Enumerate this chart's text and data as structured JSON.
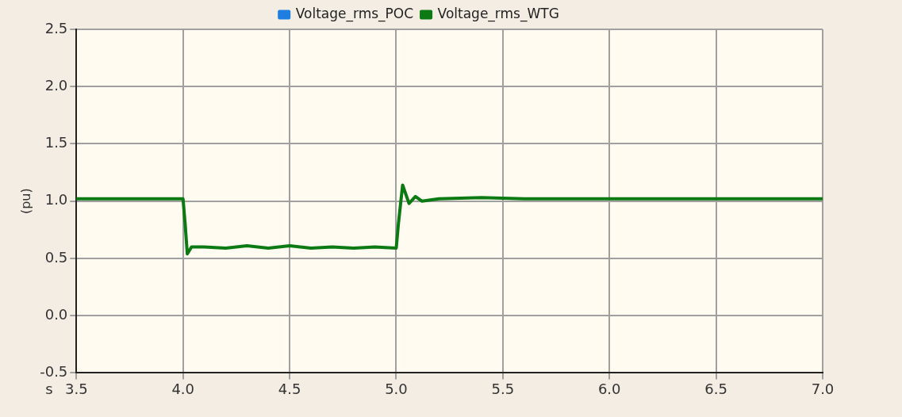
{
  "chart_data": {
    "type": "line",
    "ylabel": "(pu)",
    "xlabel": "s",
    "xlim": [
      3.5,
      7.0
    ],
    "xticks": [
      {
        "value": 3.5,
        "label": "3.5"
      },
      {
        "value": 4.0,
        "label": "4.0"
      },
      {
        "value": 4.5,
        "label": "4.5"
      },
      {
        "value": 5.0,
        "label": "5.0"
      },
      {
        "value": 5.5,
        "label": "5.5"
      },
      {
        "value": 6.0,
        "label": "6.0"
      },
      {
        "value": 6.5,
        "label": "6.5"
      },
      {
        "value": 7.0,
        "label": "7.0"
      }
    ],
    "ylim": [
      -0.5,
      2.5
    ],
    "yticks": [
      {
        "value": -0.5,
        "label": "-0.5"
      },
      {
        "value": 0,
        "label": "0.0"
      },
      {
        "value": 0.5,
        "label": "0.5"
      },
      {
        "value": 1.0,
        "label": "1.0"
      },
      {
        "value": 1.5,
        "label": "1.5"
      },
      {
        "value": 2.0,
        "label": "2.0"
      },
      {
        "value": 2.5,
        "label": "2.5"
      }
    ],
    "grid": true,
    "legend": "top",
    "marker": "none",
    "line_style": "solid",
    "x": [
      3.5,
      4.0,
      4.01,
      4.02,
      4.04,
      4.1,
      4.2,
      4.3,
      4.4,
      4.5,
      4.6,
      4.7,
      4.8,
      4.9,
      5.0,
      5.01,
      5.03,
      5.06,
      5.09,
      5.12,
      5.2,
      5.4,
      5.6,
      6.0,
      7.0
    ],
    "series": [
      {
        "name": "Voltage_rms_POC",
        "color": "#1e7fe0",
        "values": [
          null,
          null,
          null,
          null,
          null,
          null,
          null,
          null,
          null,
          null,
          null,
          null,
          null,
          null,
          null,
          null,
          null,
          null,
          null,
          null,
          null,
          null,
          null,
          null,
          null
        ]
      },
      {
        "name": "Voltage_rms_WTG",
        "color": "#0b7a12",
        "values": [
          1.02,
          1.02,
          0.8,
          0.54,
          0.6,
          0.6,
          0.59,
          0.61,
          0.59,
          0.61,
          0.59,
          0.6,
          0.59,
          0.6,
          0.59,
          0.8,
          1.14,
          0.98,
          1.04,
          1.0,
          1.02,
          1.03,
          1.02,
          1.02,
          1.02
        ]
      }
    ]
  }
}
